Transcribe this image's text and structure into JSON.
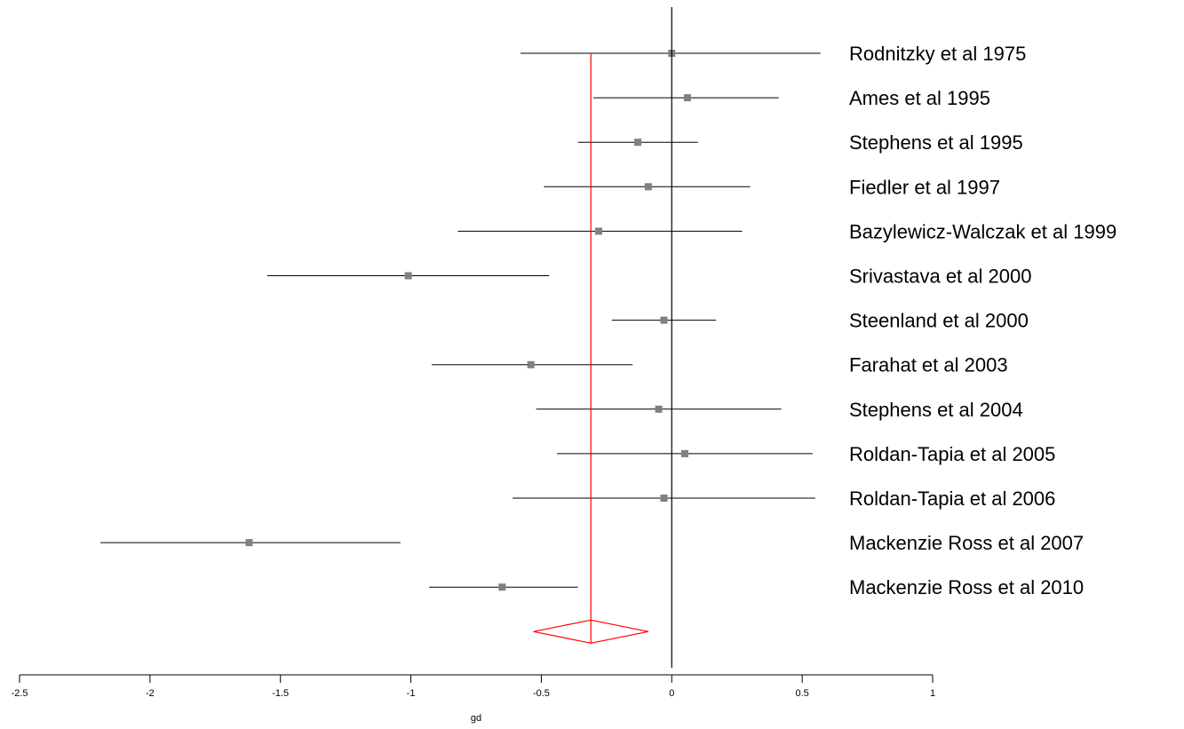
{
  "chart_data": {
    "type": "forest",
    "xlabel": "gd",
    "xlim": [
      -2.5,
      1
    ],
    "xticks": [
      -2.5,
      -2,
      -1.5,
      -1,
      -0.5,
      0,
      0.5,
      1
    ],
    "xtick_labels": [
      "-2.5",
      "-2",
      "-1.5",
      "-1",
      "-0.5",
      "0",
      "0.5",
      "1"
    ],
    "studies": [
      {
        "label": "Rodnitzky et al 1975",
        "estimate": 0.0,
        "ci_low": -0.58,
        "ci_high": 0.57
      },
      {
        "label": "Ames et al 1995",
        "estimate": 0.06,
        "ci_low": -0.3,
        "ci_high": 0.41
      },
      {
        "label": "Stephens et al 1995",
        "estimate": -0.13,
        "ci_low": -0.36,
        "ci_high": 0.1
      },
      {
        "label": "Fiedler et al 1997",
        "estimate": -0.09,
        "ci_low": -0.49,
        "ci_high": 0.3
      },
      {
        "label": "Bazylewicz-Walczak et al 1999",
        "estimate": -0.28,
        "ci_low": -0.82,
        "ci_high": 0.27
      },
      {
        "label": "Srivastava et al 2000",
        "estimate": -1.01,
        "ci_low": -1.55,
        "ci_high": -0.47
      },
      {
        "label": "Steenland et al 2000",
        "estimate": -0.03,
        "ci_low": -0.23,
        "ci_high": 0.17
      },
      {
        "label": "Farahat et al 2003",
        "estimate": -0.54,
        "ci_low": -0.92,
        "ci_high": -0.15
      },
      {
        "label": "Stephens et al 2004",
        "estimate": -0.05,
        "ci_low": -0.52,
        "ci_high": 0.42
      },
      {
        "label": "Roldan-Tapia et al 2005",
        "estimate": 0.05,
        "ci_low": -0.44,
        "ci_high": 0.54
      },
      {
        "label": "Roldan-Tapia et al 2006",
        "estimate": -0.03,
        "ci_low": -0.61,
        "ci_high": 0.55
      },
      {
        "label": "Mackenzie Ross et al 2007",
        "estimate": -1.62,
        "ci_low": -2.19,
        "ci_high": -1.04
      },
      {
        "label": "Mackenzie Ross et al 2010",
        "estimate": -0.65,
        "ci_low": -0.93,
        "ci_high": -0.36
      }
    ],
    "pooled": {
      "estimate": -0.31,
      "ci_low": -0.53,
      "ci_high": -0.09
    },
    "reference_line": 0,
    "colors": {
      "pooled": "#ff0000",
      "marker": "#808080",
      "ci_line": "#000000",
      "axis": "#000000"
    }
  }
}
